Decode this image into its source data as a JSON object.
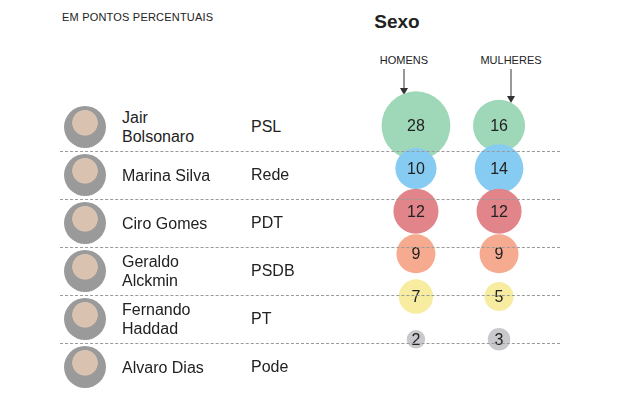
{
  "chart_data": {
    "type": "bubble",
    "subtitle": "EM PONTOS PERCENTUAIS",
    "title": "Sexo",
    "categories": [
      "Jair Bolsonaro",
      "Marina Silva",
      "Ciro Gomes",
      "Geraldo Alckmin",
      "Fernando Haddad",
      "Alvaro Dias"
    ],
    "parties": [
      "PSL",
      "Rede",
      "PDT",
      "PSDB",
      "PT",
      "Pode"
    ],
    "series": [
      {
        "name": "HOMENS",
        "values": [
          28,
          10,
          12,
          9,
          7,
          2
        ]
      },
      {
        "name": "MULHERES",
        "values": [
          16,
          14,
          12,
          9,
          5,
          3
        ]
      }
    ],
    "colors": [
      "#9fd8b8",
      "#86ccf2",
      "#e1858b",
      "#f6aa90",
      "#f7eca0",
      "#c9c9cd"
    ],
    "data_labels": true
  }
}
